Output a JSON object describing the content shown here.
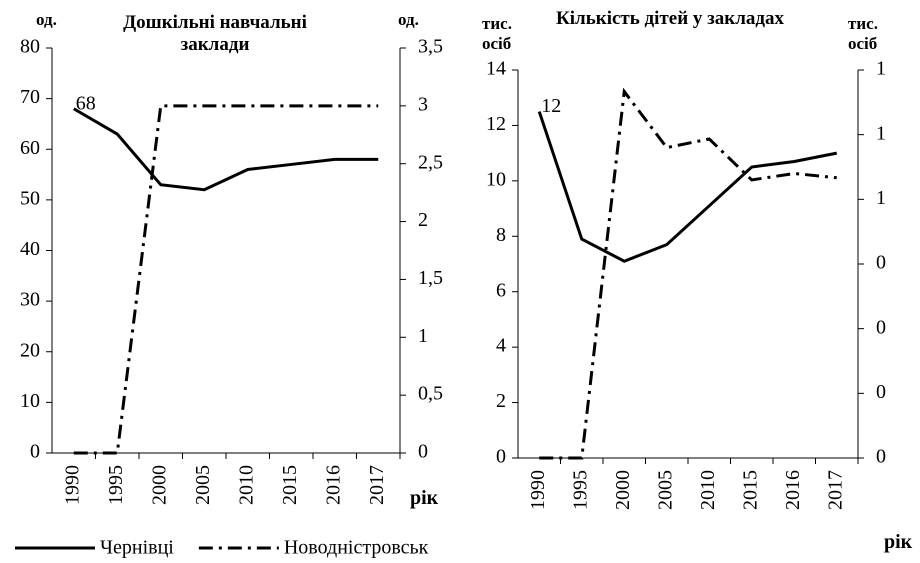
{
  "chart_data": [
    {
      "type": "line",
      "title": "Дошкільні навчальні заклади",
      "ylabel": "од.",
      "y2label": "од.",
      "xlabel": "рік",
      "categories": [
        "1990",
        "1995",
        "2000",
        "2005",
        "2010",
        "2015",
        "2016",
        "2017"
      ],
      "series": [
        {
          "name": "Чернівці",
          "color": "#000000",
          "dash": "solid",
          "values": [
            68,
            63,
            53,
            52,
            56,
            57,
            58,
            58
          ]
        },
        {
          "name": "Новодністровськ",
          "color": "#000000",
          "dash": "dashdot",
          "axis": "y2",
          "values": [
            0,
            0,
            3,
            3,
            3,
            3,
            3,
            3
          ]
        }
      ],
      "annotations": [
        "68"
      ],
      "ylim": [
        0,
        80
      ],
      "yticks": [
        0,
        10,
        20,
        30,
        40,
        50,
        60,
        70,
        80
      ],
      "y2lim": [
        0,
        3.5
      ],
      "y2ticks": [
        0,
        {
          "value": 0.5,
          "label": "0,5"
        },
        1,
        {
          "value": 1.5,
          "label": "1,5"
        },
        2,
        {
          "value": 2.5,
          "label": "2,5"
        },
        3,
        {
          "value": 3.5,
          "label": "3,5"
        }
      ],
      "grid": false,
      "legend": "bottom"
    },
    {
      "type": "line",
      "title": "Кількість дітей у закладах",
      "ylabel": "тис. осіб",
      "y2label": "тис. осіб",
      "xlabel": "рік",
      "categories": [
        "1990",
        "1995",
        "2000",
        "2005",
        "2010",
        "2015",
        "2016",
        "2017"
      ],
      "series": [
        {
          "color": "#000000",
          "dash": "solid",
          "values": [
            12.5,
            7.9,
            7.1,
            7.7,
            9.1,
            10.5,
            10.7,
            11.0
          ]
        },
        {
          "color": "#000000",
          "dash": "dashdot",
          "axis": "y2",
          "values": [
            0,
            0,
            0.85,
            0.72,
            0.74,
            0.645,
            0.66,
            0.65
          ]
        }
      ],
      "annotations": [
        "12"
      ],
      "ylim": [
        0,
        14
      ],
      "yticks": [
        0,
        2,
        4,
        6,
        8,
        10,
        12,
        14
      ],
      "y2lim": [
        0,
        0.9
      ],
      "y2ticks": [
        0,
        {
          "value": 0.15,
          "label": "0"
        },
        {
          "value": 0.3,
          "label": "0"
        },
        {
          "value": 0.45,
          "label": "0"
        },
        {
          "value": 0.6,
          "label": "1"
        },
        {
          "value": 0.75,
          "label": "1"
        },
        {
          "value": 0.9,
          "label": "1"
        }
      ],
      "grid": false
    }
  ]
}
